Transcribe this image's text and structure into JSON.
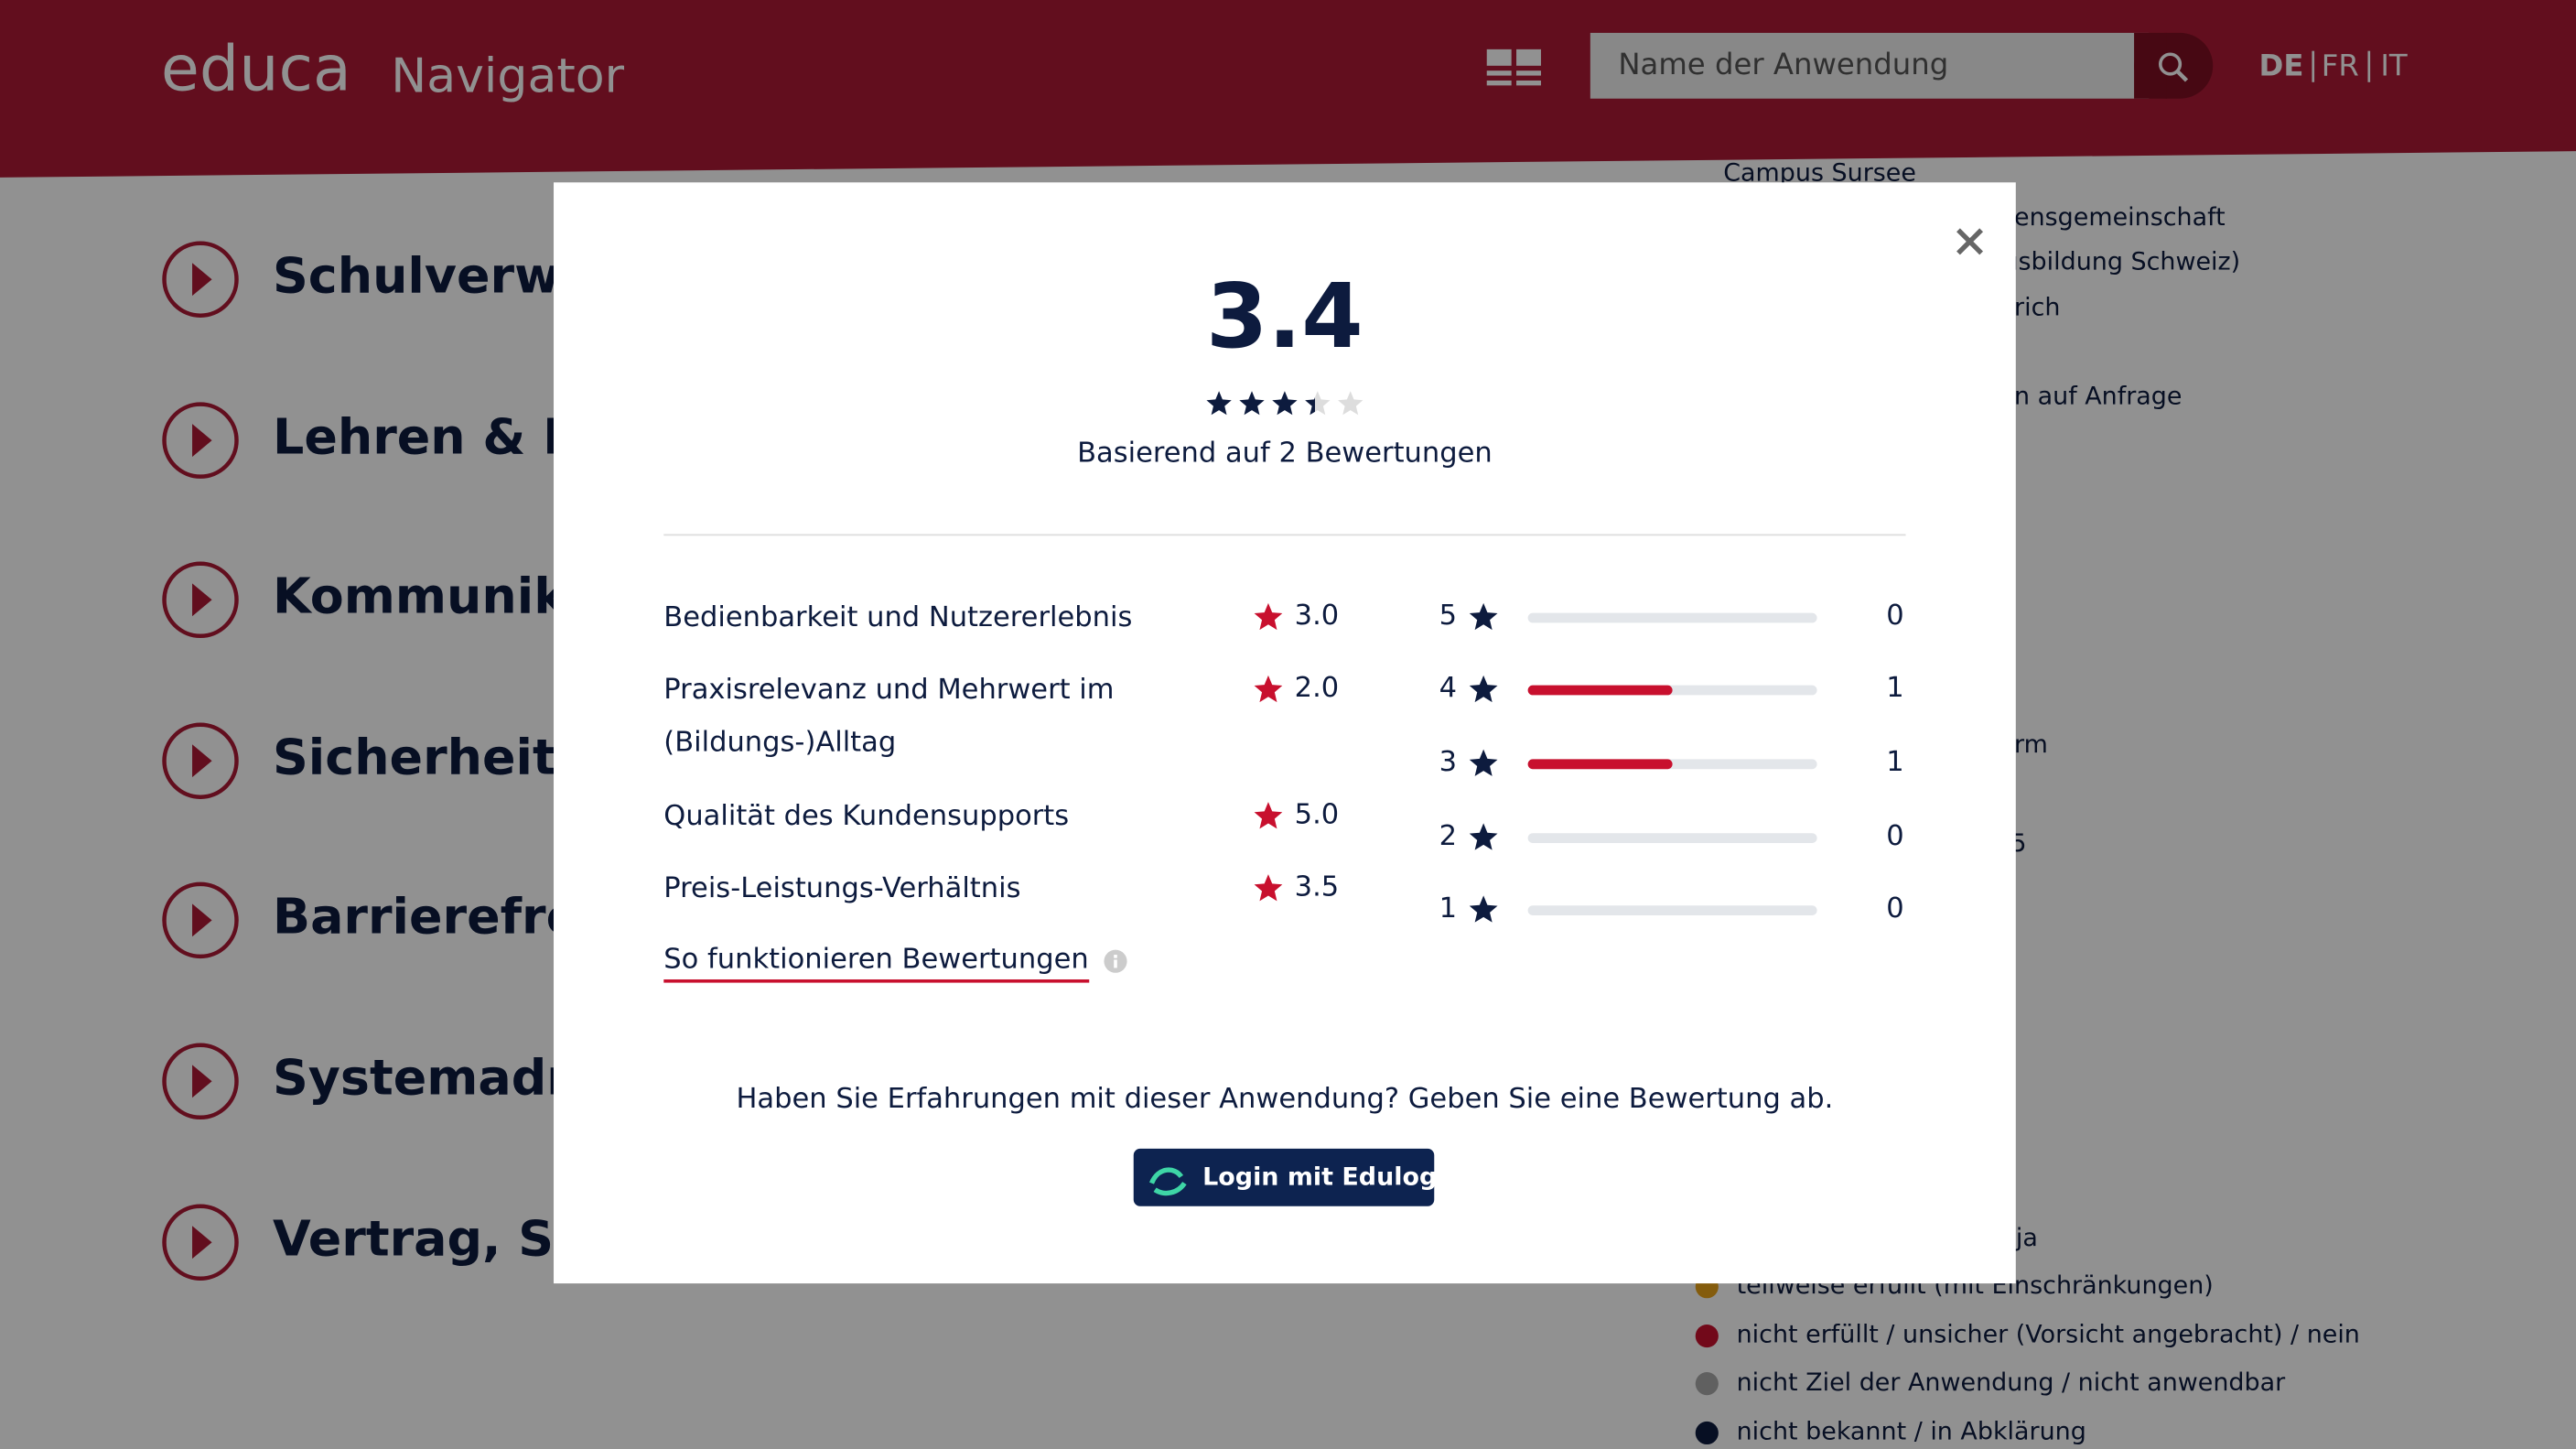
{
  "header": {
    "logo": "educa",
    "product": "Navigator",
    "search_placeholder": "Name der Anwendung",
    "languages": [
      "DE",
      "FR",
      "IT"
    ]
  },
  "background": {
    "categories": [
      "Schulverw",
      "Lehren & Le",
      "Kommunika",
      "Sicherheit &",
      "Barrierefrei",
      "Systemadm",
      "Vertrag, Su"
    ],
    "details": [
      "Campus Sursee",
      "ensgemeinschaft",
      "usbildung Schweiz)",
      "rich",
      "n auf Anfrage",
      "rm",
      "5"
    ],
    "legend": [
      "unbedenklich, sicher / ja",
      "teilweise erfüllt (mit Einschränkungen)",
      "nicht erfüllt / unsicher (Vorsicht angebracht) / nein",
      "nicht Ziel der Anwendung / nicht anwendbar",
      "nicht bekannt / in Abklärung"
    ]
  },
  "modal": {
    "average": 3.4,
    "review_count_text": "Basierend auf 2 Bewertungen",
    "criteria": [
      {
        "name": "Bedienbarkeit und Nutzererlebnis",
        "score": {
          "value": 3,
          "label": "3.0"
        }
      },
      {
        "name": "Praxisrelevanz und Mehrwert im (Bildungs-)Alltag",
        "score": {
          "value": 2,
          "label": "2.0"
        }
      },
      {
        "name": "Qualität des Kundensupports",
        "score": {
          "value": 5,
          "label": "5.0"
        }
      },
      {
        "name": "Preis-Leistungs-Verhältnis",
        "score": {
          "value": 3.5,
          "label": "3.5"
        }
      }
    ],
    "distribution": [
      {
        "stars": 5,
        "count": 0
      },
      {
        "stars": 4,
        "count": 1
      },
      {
        "stars": 3,
        "count": 1
      },
      {
        "stars": 2,
        "count": 0
      },
      {
        "stars": 1,
        "count": 0
      }
    ],
    "help_link": "So funktionieren Bewertungen",
    "cta_text": "Haben Sie Erfahrungen mit dieser Anwendung? Geben Sie eine Bewertung ab.",
    "login_button": "Login mit Edulog"
  }
}
